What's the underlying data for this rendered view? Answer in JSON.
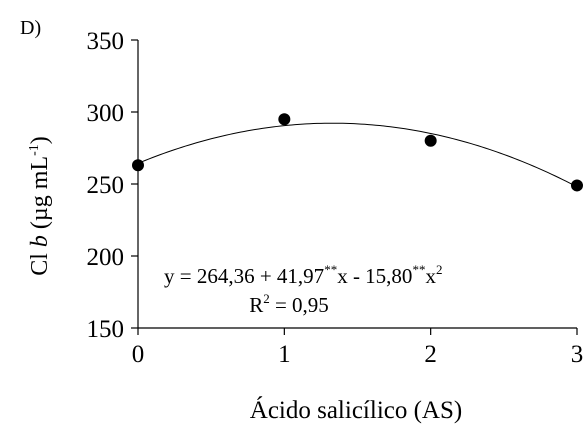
{
  "panel_label": "D)",
  "chart_data": {
    "type": "scatter",
    "xlabel": "Ácido salicílico (AS)",
    "ylabel_prefix": "Cl ",
    "ylabel_italic": "b",
    "ylabel_units_open": " (µg mL",
    "ylabel_units_sup": "-1",
    "ylabel_units_close": ")",
    "xlim": [
      0,
      3
    ],
    "ylim": [
      150,
      350
    ],
    "x_ticks": [
      0,
      1,
      2,
      3
    ],
    "y_ticks": [
      150,
      200,
      250,
      300,
      350
    ],
    "x_tick_labels": [
      "0",
      "1",
      "2",
      "3"
    ],
    "y_tick_labels": [
      "150",
      "200",
      "250",
      "300",
      "350"
    ],
    "grid": false,
    "points": [
      {
        "x": 0,
        "y": 263
      },
      {
        "x": 1,
        "y": 295
      },
      {
        "x": 2,
        "y": 280
      },
      {
        "x": 3,
        "y": 249
      }
    ],
    "fit": {
      "intercept": 264.36,
      "b1": 41.97,
      "b2": -15.8
    },
    "equation": {
      "lhs": "y =  264,36 + 41,97",
      "sig1": "**",
      "mid": "x  - 15,80",
      "sig2": "**",
      "var2": "x",
      "exp2": "2"
    },
    "r2": {
      "label": "R",
      "sup": "2",
      "value": " = 0,95"
    }
  }
}
